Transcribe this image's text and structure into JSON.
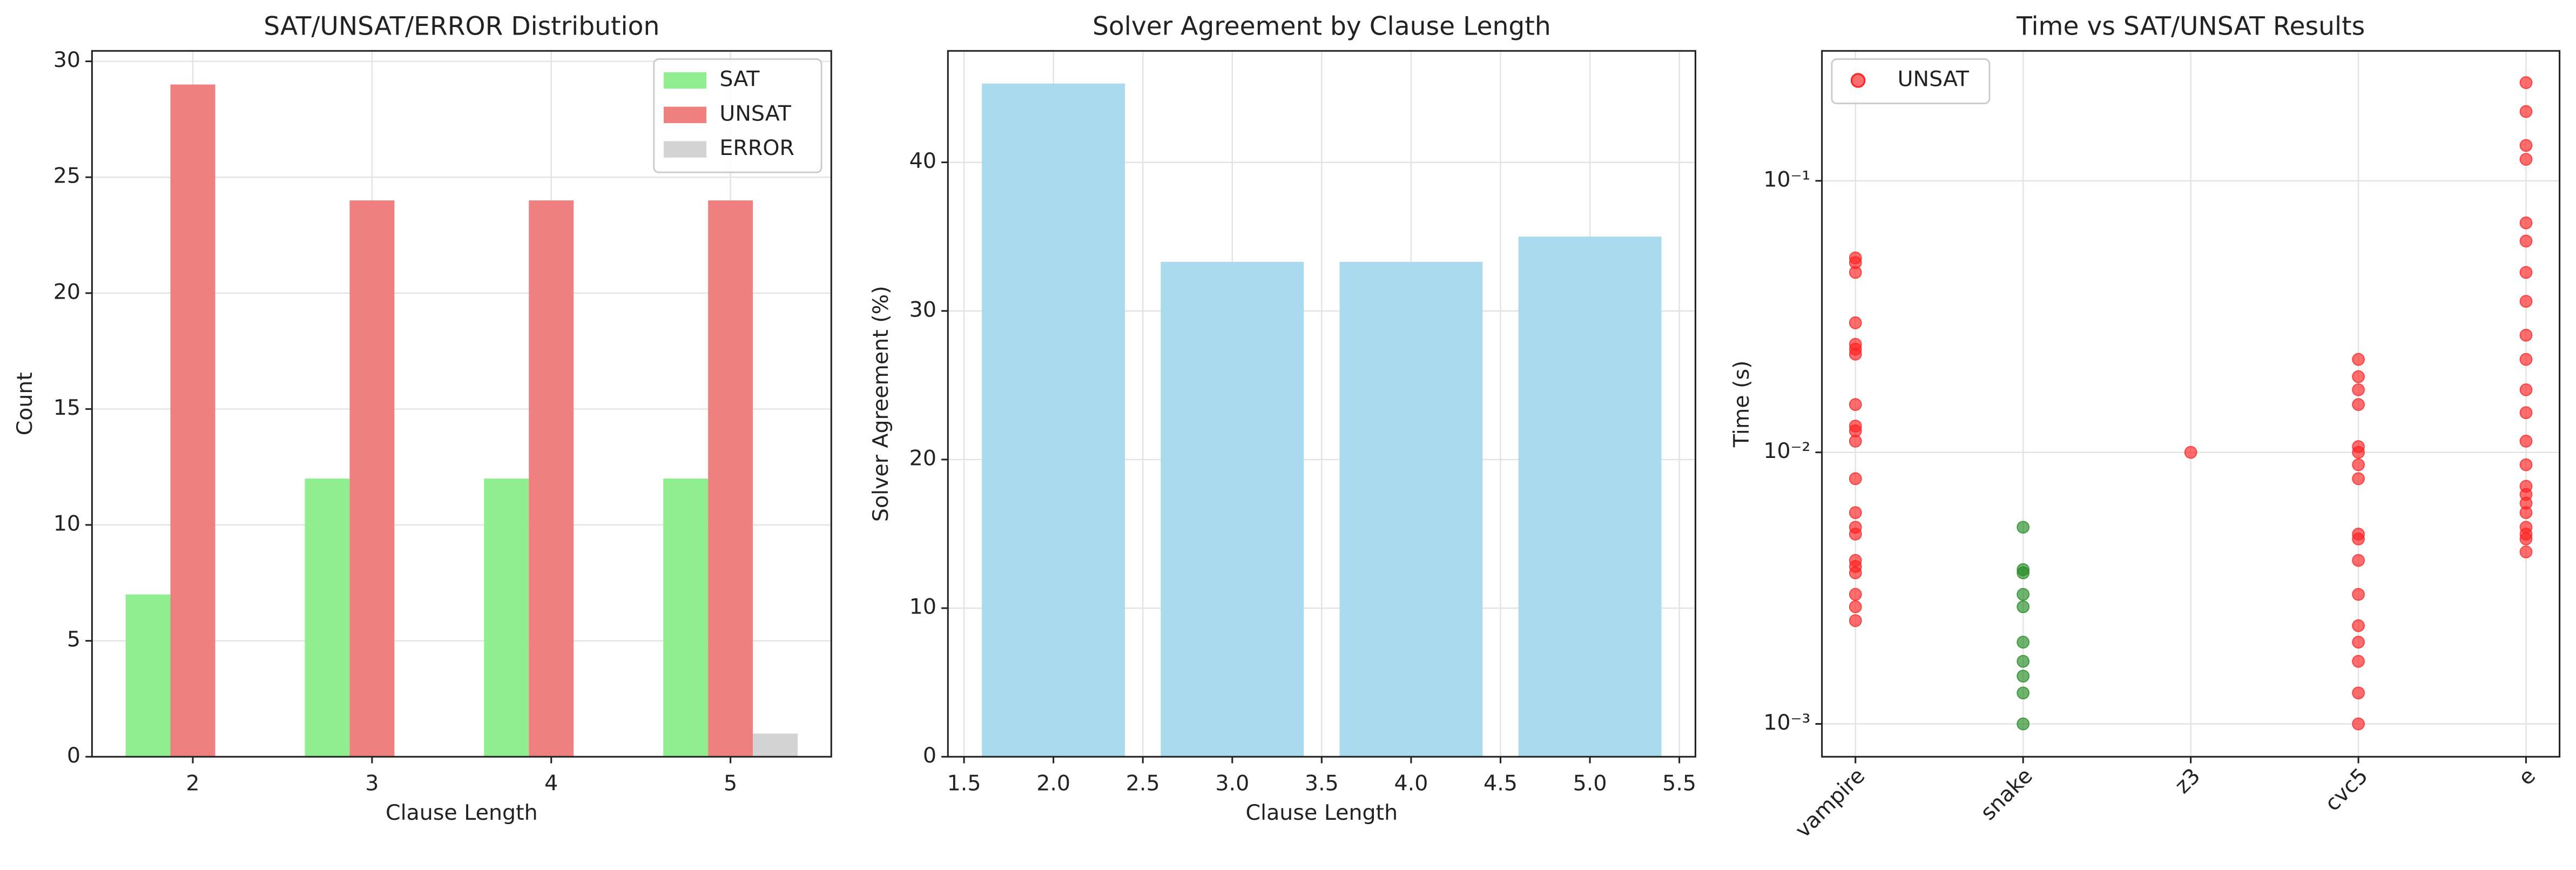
{
  "chart_data": [
    {
      "type": "grouped-bar",
      "title": "SAT/UNSAT/ERROR Distribution",
      "xlabel": "Clause Length",
      "ylabel": "Count",
      "categories": [
        "2",
        "3",
        "4",
        "5"
      ],
      "series": [
        {
          "name": "SAT",
          "color": "#90ee90",
          "values": [
            7,
            12,
            12,
            12
          ]
        },
        {
          "name": "UNSAT",
          "color": "#f08080",
          "values": [
            29,
            24,
            24,
            24
          ]
        },
        {
          "name": "ERROR",
          "color": "#d3d3d3",
          "values": [
            0,
            0,
            0,
            1
          ]
        }
      ],
      "ylim": [
        0,
        30.45
      ],
      "yticks": [
        0,
        5,
        10,
        15,
        20,
        25,
        30
      ],
      "grid": true,
      "legend": "upper-right"
    },
    {
      "type": "bar",
      "title": "Solver Agreement by Clause Length",
      "xlabel": "Clause Length",
      "ylabel": "Solver Agreement (%)",
      "x": [
        2,
        3,
        4,
        5
      ],
      "values": [
        45.3,
        33.3,
        33.3,
        35
      ],
      "color": "#a9daed",
      "xlim": [
        1.41,
        5.59
      ],
      "xticks": [
        {
          "value": 1.5,
          "label": "1.5"
        },
        {
          "value": 2,
          "label": "2.0"
        },
        {
          "value": 2.5,
          "label": "2.5"
        },
        {
          "value": 3,
          "label": "3.0"
        },
        {
          "value": 3.5,
          "label": "3.5"
        },
        {
          "value": 4,
          "label": "4.0"
        },
        {
          "value": 4.5,
          "label": "4.5"
        },
        {
          "value": 5,
          "label": "5.0"
        },
        {
          "value": 5.5,
          "label": "5.5"
        }
      ],
      "ylim": [
        0,
        47.5
      ],
      "yticks": [
        0,
        10,
        20,
        30,
        40
      ],
      "grid": true
    },
    {
      "type": "scatter",
      "title": "Time vs SAT/UNSAT Results",
      "ylabel": "Time (s)",
      "log_y": true,
      "categories": [
        "vampire",
        "snake",
        "z3",
        "cvc5",
        "e"
      ],
      "series": [
        {
          "color": "#228b22",
          "x": [
            "snake",
            "snake",
            "snake",
            "snake",
            "snake",
            "snake",
            "snake",
            "snake",
            "snake",
            "snake"
          ],
          "values": [
            0.0053,
            0.0037,
            0.0036,
            0.003,
            0.0027,
            0.002,
            0.0017,
            0.0015,
            0.0013,
            0.001
          ]
        },
        {
          "name": "UNSAT",
          "color": "#ff2020",
          "x": [
            "vampire",
            "vampire",
            "vampire",
            "vampire",
            "vampire",
            "vampire",
            "vampire",
            "vampire",
            "vampire",
            "vampire",
            "vampire",
            "vampire",
            "vampire",
            "vampire",
            "vampire",
            "vampire",
            "vampire",
            "vampire",
            "vampire",
            "vampire",
            "vampire",
            "z3",
            "cvc5",
            "cvc5",
            "cvc5",
            "cvc5",
            "cvc5",
            "cvc5",
            "cvc5",
            "cvc5",
            "cvc5",
            "cvc5",
            "cvc5",
            "cvc5",
            "cvc5",
            "cvc5",
            "cvc5",
            "cvc5",
            "cvc5",
            "e",
            "e",
            "e",
            "e",
            "e",
            "e",
            "e",
            "e",
            "e",
            "e",
            "e",
            "e",
            "e",
            "e",
            "e",
            "e",
            "e",
            "e",
            "e",
            "e",
            "e",
            "e"
          ],
          "values": [
            0.052,
            0.05,
            0.046,
            0.03,
            0.025,
            0.024,
            0.023,
            0.015,
            0.0125,
            0.012,
            0.011,
            0.008,
            0.006,
            0.0053,
            0.005,
            0.004,
            0.0038,
            0.0036,
            0.003,
            0.0027,
            0.0024,
            0.01,
            0.022,
            0.019,
            0.017,
            0.015,
            0.0105,
            0.01,
            0.009,
            0.008,
            0.005,
            0.0048,
            0.004,
            0.003,
            0.0023,
            0.002,
            0.0017,
            0.0013,
            0.001,
            0.23,
            0.18,
            0.135,
            0.12,
            0.07,
            0.06,
            0.046,
            0.036,
            0.027,
            0.022,
            0.017,
            0.014,
            0.011,
            0.009,
            0.0075,
            0.007,
            0.0065,
            0.006,
            0.0053,
            0.005,
            0.0048,
            0.0043
          ]
        }
      ],
      "ylim": [
        0.000757,
        0.301
      ],
      "yticks": [
        {
          "value": 0.001,
          "label": "10⁻³"
        },
        {
          "value": 0.01,
          "label": "10⁻²"
        },
        {
          "value": 0.1,
          "label": "10⁻¹"
        }
      ],
      "grid": true,
      "legend": "upper-left"
    }
  ]
}
